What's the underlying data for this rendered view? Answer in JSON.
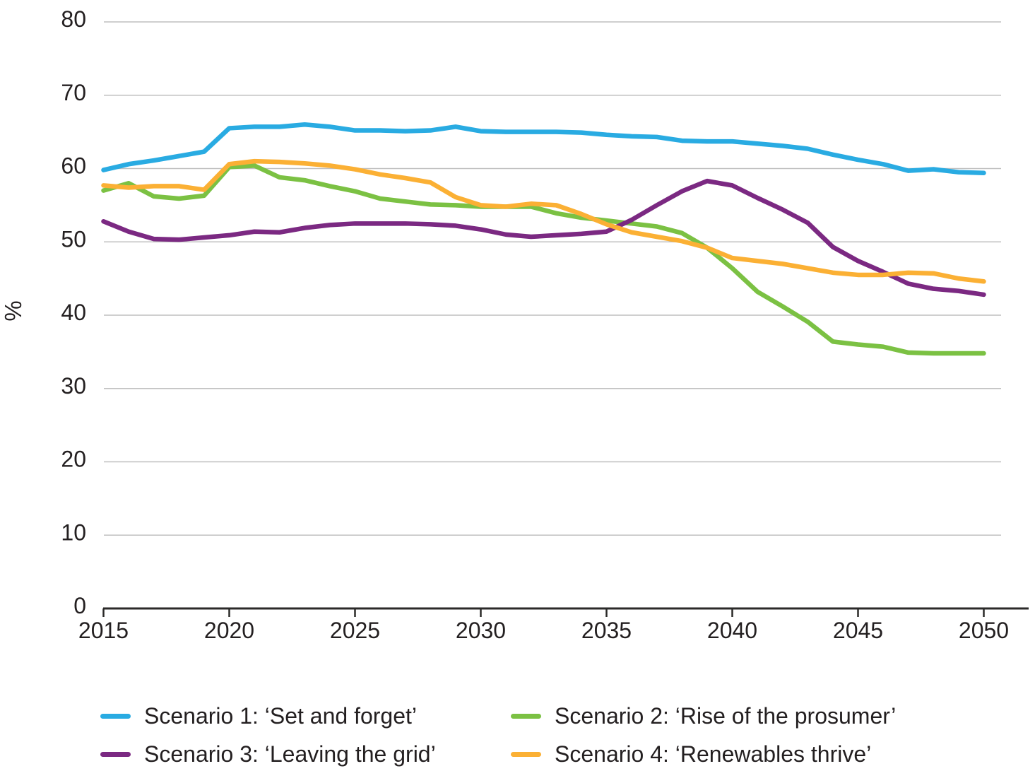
{
  "chart_data": {
    "type": "line",
    "title": "",
    "xlabel": "",
    "ylabel": "%",
    "ylim": [
      0,
      80
    ],
    "xlim": [
      2015,
      2050
    ],
    "yticks": [
      0,
      10,
      20,
      30,
      40,
      50,
      60,
      70,
      80
    ],
    "xticks": [
      2015,
      2020,
      2025,
      2030,
      2035,
      2040,
      2045,
      2050
    ],
    "grid": "horizontal",
    "legend_position": "bottom",
    "x": [
      2015,
      2016,
      2017,
      2018,
      2019,
      2020,
      2021,
      2022,
      2023,
      2024,
      2025,
      2026,
      2027,
      2028,
      2029,
      2030,
      2031,
      2032,
      2033,
      2034,
      2035,
      2036,
      2037,
      2038,
      2039,
      2040,
      2041,
      2042,
      2043,
      2044,
      2045,
      2046,
      2047,
      2048,
      2049,
      2050
    ],
    "series": [
      {
        "name": "Scenario 1: ‘Set and forget’",
        "color": "#29ABE2",
        "values": [
          59.8,
          60.6,
          61.1,
          61.7,
          62.3,
          65.5,
          65.7,
          65.7,
          66.0,
          65.7,
          65.2,
          65.2,
          65.1,
          65.2,
          65.7,
          65.1,
          65.0,
          65.0,
          65.0,
          64.9,
          64.6,
          64.4,
          64.3,
          63.8,
          63.7,
          63.7,
          63.4,
          63.1,
          62.7,
          61.9,
          61.2,
          60.6,
          59.7,
          59.9,
          59.5,
          59.4
        ]
      },
      {
        "name": "Scenario 2: ‘Rise of the prosumer’",
        "color": "#7BC143",
        "values": [
          57.0,
          58.0,
          56.2,
          55.9,
          56.3,
          60.2,
          60.4,
          58.8,
          58.4,
          57.6,
          56.9,
          55.9,
          55.5,
          55.1,
          55.0,
          54.8,
          54.8,
          54.8,
          53.9,
          53.3,
          52.9,
          52.5,
          52.1,
          51.2,
          49.2,
          46.4,
          43.2,
          41.2,
          39.1,
          36.4,
          36.0,
          35.7,
          34.9,
          34.8,
          34.8,
          34.8
        ]
      },
      {
        "name": "Scenario 3: ‘Leaving the grid’",
        "color": "#7B2982",
        "values": [
          52.8,
          51.4,
          50.4,
          50.3,
          50.6,
          50.9,
          51.4,
          51.3,
          51.9,
          52.3,
          52.5,
          52.5,
          52.5,
          52.4,
          52.2,
          51.7,
          51.0,
          50.7,
          50.9,
          51.1,
          51.4,
          53.0,
          55.0,
          56.9,
          58.3,
          57.7,
          56.0,
          54.4,
          52.6,
          49.3,
          47.4,
          45.9,
          44.3,
          43.6,
          43.3,
          42.8
        ]
      },
      {
        "name": "Scenario 4: ‘Renewables thrive’",
        "color": "#FBB034",
        "values": [
          57.7,
          57.4,
          57.6,
          57.6,
          57.1,
          60.6,
          61.0,
          60.9,
          60.7,
          60.4,
          59.9,
          59.2,
          58.7,
          58.1,
          56.1,
          55.0,
          54.8,
          55.2,
          55.0,
          53.8,
          52.4,
          51.3,
          50.7,
          50.1,
          49.2,
          47.8,
          47.4,
          47.0,
          46.4,
          45.8,
          45.5,
          45.5,
          45.8,
          45.7,
          45.0,
          44.6
        ]
      }
    ]
  }
}
